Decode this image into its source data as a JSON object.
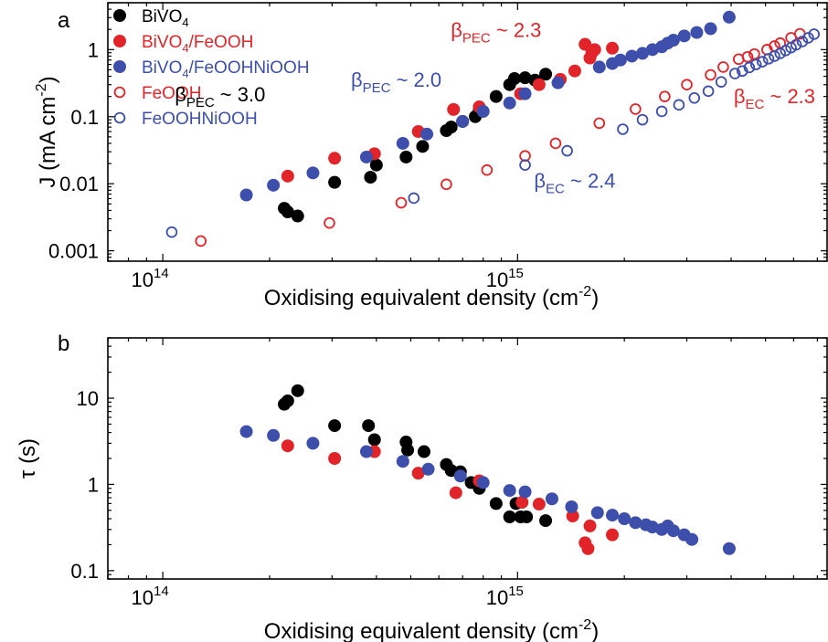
{
  "colors": {
    "bivo4": "#000000",
    "red": "#e0242a",
    "blue": "#3d4faa"
  },
  "chart_data": [
    {
      "panel_label": "a",
      "type": "scatter",
      "xscale": "log",
      "yscale": "log",
      "xlim": [
        70000000000000.0,
        7500000000000000.0
      ],
      "ylim": [
        0.0007,
        5
      ],
      "xlabel": "Oxidising equivalent density (cm",
      "xlabel_sup": "-2",
      "xlabel_end": ")",
      "ylabel": "J (mA cm",
      "ylabel_sup": "-2",
      "ylabel_end": ")",
      "xticks": [
        {
          "base": "10",
          "exp": "14",
          "value": 100000000000000.0
        },
        {
          "base": "10",
          "exp": "15",
          "value": 1000000000000000.0
        }
      ],
      "yticks": [
        {
          "label": "0.001",
          "value": 0.001
        },
        {
          "label": "0.01",
          "value": 0.01
        },
        {
          "label": "0.1",
          "value": 0.1
        },
        {
          "label": "1",
          "value": 1
        }
      ],
      "legend": {
        "placement": "top-left",
        "entries": [
          {
            "text": "BiVO",
            "sub": "4",
            "tail": "",
            "marker": "filled",
            "color": "#000000"
          },
          {
            "text": "BiVO",
            "sub": "4",
            "tail": "/FeOOH",
            "marker": "filled",
            "color": "#e0242a"
          },
          {
            "text": "BiVO",
            "sub": "4",
            "tail": "/FeOOHNiOOH",
            "marker": "filled",
            "color": "#3d4faa"
          },
          {
            "text": "FeOOH",
            "sub": "",
            "tail": "",
            "marker": "open",
            "color": "#e0242a"
          },
          {
            "text": "FeOOHNiOOH",
            "sub": "",
            "tail": "",
            "marker": "open",
            "color": "#3d4faa"
          }
        ]
      },
      "annotations": [
        {
          "sym": "β",
          "sub": "PEC",
          "tail": " ~ 3.0",
          "color": "#000000",
          "x": 145000000000000.0,
          "y": 0.17
        },
        {
          "sym": "β",
          "sub": "PEC",
          "tail": " ~ 2.0",
          "color": "#3d4faa",
          "x": 455000000000000.0,
          "y": 0.28
        },
        {
          "sym": "β",
          "sub": "PEC",
          "tail": " ~ 2.3",
          "color": "#e0242a",
          "x": 870000000000000.0,
          "y": 1.55
        },
        {
          "sym": "β",
          "sub": "EC",
          "tail": " ~ 2.4",
          "color": "#3d4faa",
          "x": 1450000000000000.0,
          "y": 0.0088
        },
        {
          "sym": "β",
          "sub": "EC",
          "tail": " ~ 2.3",
          "color": "#e0242a",
          "x": 5300000000000000.0,
          "y": 0.16
        }
      ],
      "series": [
        {
          "name": "BiVO4",
          "marker": "filled",
          "color": "#000000",
          "points": [
            [
              220000000000000.0,
              0.0043
            ],
            [
              225000000000000.0,
              0.0038
            ],
            [
              240000000000000.0,
              0.0033
            ],
            [
              305000000000000.0,
              0.0105
            ],
            [
              385000000000000.0,
              0.0125
            ],
            [
              400000000000000.0,
              0.019
            ],
            [
              485000000000000.0,
              0.025
            ],
            [
              540000000000000.0,
              0.036
            ],
            [
              630000000000000.0,
              0.062
            ],
            [
              650000000000000.0,
              0.07
            ],
            [
              700000000000000.0,
              0.085
            ],
            [
              760000000000000.0,
              0.1
            ],
            [
              780000000000000.0,
              0.125
            ],
            [
              870000000000000.0,
              0.2
            ],
            [
              950000000000000.0,
              0.3
            ],
            [
              980000000000000.0,
              0.37
            ],
            [
              1050000000000000.0,
              0.38
            ],
            [
              1120000000000000.0,
              0.35
            ],
            [
              1200000000000000.0,
              0.43
            ]
          ]
        },
        {
          "name": "BiVO4/FeOOH",
          "marker": "filled",
          "color": "#e0242a",
          "points": [
            [
              225000000000000.0,
              0.013
            ],
            [
              305000000000000.0,
              0.024
            ],
            [
              395000000000000.0,
              0.028
            ],
            [
              525000000000000.0,
              0.06
            ],
            [
              660000000000000.0,
              0.128
            ],
            [
              780000000000000.0,
              0.14
            ],
            [
              1020000000000000.0,
              0.22
            ],
            [
              1150000000000000.0,
              0.3
            ],
            [
              1320000000000000.0,
              0.36
            ],
            [
              1450000000000000.0,
              0.48
            ],
            [
              1550000000000000.0,
              1.2
            ],
            [
              1600000000000000.0,
              0.75
            ],
            [
              1620000000000000.0,
              0.9
            ],
            [
              1650000000000000.0,
              1.0
            ],
            [
              1850000000000000.0,
              1.05
            ]
          ]
        },
        {
          "name": "BiVO4/FeOOHNiOOH",
          "marker": "filled",
          "color": "#3d4faa",
          "points": [
            [
              172000000000000.0,
              0.0068
            ],
            [
              205000000000000.0,
              0.0095
            ],
            [
              265000000000000.0,
              0.0145
            ],
            [
              375000000000000.0,
              0.025
            ],
            [
              475000000000000.0,
              0.04
            ],
            [
              555000000000000.0,
              0.055
            ],
            [
              700000000000000.0,
              0.085
            ],
            [
              800000000000000.0,
              0.12
            ],
            [
              950000000000000.0,
              0.16
            ],
            [
              1050000000000000.0,
              0.22
            ],
            [
              1300000000000000.0,
              0.32
            ],
            [
              1700000000000000.0,
              0.55
            ],
            [
              1850000000000000.0,
              0.62
            ],
            [
              1950000000000000.0,
              0.7
            ],
            [
              2100000000000000.0,
              0.8
            ],
            [
              2250000000000000.0,
              0.88
            ],
            [
              2400000000000000.0,
              1.0
            ],
            [
              2550000000000000.0,
              1.1
            ],
            [
              2650000000000000.0,
              1.25
            ],
            [
              2750000000000000.0,
              1.38
            ],
            [
              2950000000000000.0,
              1.6
            ],
            [
              3200000000000000.0,
              1.8
            ],
            [
              3500000000000000.0,
              2.05
            ],
            [
              3950000000000000.0,
              3.05
            ]
          ]
        },
        {
          "name": "FeOOH",
          "marker": "open",
          "color": "#e0242a",
          "points": [
            [
              128000000000000.0,
              0.0014
            ],
            [
              295000000000000.0,
              0.0026
            ],
            [
              470000000000000.0,
              0.0052
            ],
            [
              630000000000000.0,
              0.0098
            ],
            [
              820000000000000.0,
              0.016
            ],
            [
              1050000000000000.0,
              0.026
            ],
            [
              1280000000000000.0,
              0.04
            ],
            [
              1700000000000000.0,
              0.08
            ],
            [
              2150000000000000.0,
              0.13
            ],
            [
              2600000000000000.0,
              0.2
            ],
            [
              3000000000000000.0,
              0.3
            ],
            [
              3500000000000000.0,
              0.42
            ],
            [
              3800000000000000.0,
              0.55
            ],
            [
              4200000000000000.0,
              0.72
            ],
            [
              4450000000000000.0,
              0.78
            ],
            [
              4650000000000000.0,
              0.86
            ],
            [
              5050000000000000.0,
              1.0
            ],
            [
              5300000000000000.0,
              1.13
            ],
            [
              5500000000000000.0,
              1.25
            ],
            [
              5900000000000000.0,
              1.5
            ],
            [
              6250000000000000.0,
              1.72
            ]
          ]
        },
        {
          "name": "FeOOHNiOOH",
          "marker": "open",
          "color": "#3d4faa",
          "points": [
            [
              106000000000000.0,
              0.0019
            ],
            [
              510000000000000.0,
              0.0061
            ],
            [
              1050000000000000.0,
              0.019
            ],
            [
              1380000000000000.0,
              0.031
            ],
            [
              1980000000000000.0,
              0.065
            ],
            [
              2250000000000000.0,
              0.09
            ],
            [
              2550000000000000.0,
              0.12
            ],
            [
              2850000000000000.0,
              0.15
            ],
            [
              3150000000000000.0,
              0.19
            ],
            [
              3450000000000000.0,
              0.24
            ],
            [
              3750000000000000.0,
              0.33
            ],
            [
              4100000000000000.0,
              0.44
            ],
            [
              4300000000000000.0,
              0.48
            ],
            [
              4500000000000000.0,
              0.54
            ],
            [
              4700000000000000.0,
              0.6
            ],
            [
              4900000000000000.0,
              0.66
            ],
            [
              5100000000000000.0,
              0.73
            ],
            [
              5300000000000000.0,
              0.8
            ],
            [
              5500000000000000.0,
              0.88
            ],
            [
              5700000000000000.0,
              0.97
            ],
            [
              5900000000000000.0,
              1.07
            ],
            [
              6100000000000000.0,
              1.18
            ],
            [
              6350000000000000.0,
              1.32
            ],
            [
              6600000000000000.0,
              1.5
            ],
            [
              6850000000000000.0,
              1.7
            ]
          ]
        }
      ]
    },
    {
      "panel_label": "b",
      "type": "scatter",
      "xscale": "log",
      "yscale": "log",
      "xlim": [
        70000000000000.0,
        7500000000000000.0
      ],
      "ylim": [
        0.08,
        50
      ],
      "xlabel": "Oxidising equivalent density (cm",
      "xlabel_sup": "-2",
      "xlabel_end": ")",
      "ylabel": "τ (s)",
      "xticks": [
        {
          "base": "10",
          "exp": "14",
          "value": 100000000000000.0
        },
        {
          "base": "10",
          "exp": "15",
          "value": 1000000000000000.0
        }
      ],
      "yticks": [
        {
          "label": "0.1",
          "value": 0.1
        },
        {
          "label": "1",
          "value": 1
        },
        {
          "label": "10",
          "value": 10
        }
      ],
      "series": [
        {
          "name": "BiVO4",
          "marker": "filled",
          "color": "#000000",
          "points": [
            [
              220000000000000.0,
              8.5
            ],
            [
              225000000000000.0,
              9.3
            ],
            [
              240000000000000.0,
              12.2
            ],
            [
              305000000000000.0,
              4.8
            ],
            [
              380000000000000.0,
              4.8
            ],
            [
              395000000000000.0,
              3.3
            ],
            [
              485000000000000.0,
              3.1
            ],
            [
              490000000000000.0,
              2.5
            ],
            [
              545000000000000.0,
              2.4
            ],
            [
              630000000000000.0,
              1.7
            ],
            [
              650000000000000.0,
              1.45
            ],
            [
              690000000000000.0,
              1.4
            ],
            [
              740000000000000.0,
              1.05
            ],
            [
              780000000000000.0,
              0.9
            ],
            [
              870000000000000.0,
              0.6
            ],
            [
              950000000000000.0,
              0.42
            ],
            [
              990000000000000.0,
              0.6
            ],
            [
              1020000000000000.0,
              0.42
            ],
            [
              1060000000000000.0,
              0.42
            ],
            [
              1200000000000000.0,
              0.38
            ]
          ]
        },
        {
          "name": "BiVO4/FeOOH",
          "marker": "filled",
          "color": "#e0242a",
          "points": [
            [
              225000000000000.0,
              2.8
            ],
            [
              305000000000000.0,
              2.0
            ],
            [
              395000000000000.0,
              2.4
            ],
            [
              525000000000000.0,
              1.35
            ],
            [
              670000000000000.0,
              0.8
            ],
            [
              780000000000000.0,
              1.1
            ],
            [
              1030000000000000.0,
              0.62
            ],
            [
              1150000000000000.0,
              0.59
            ],
            [
              1430000000000000.0,
              0.43
            ],
            [
              1550000000000000.0,
              0.21
            ],
            [
              1580000000000000.0,
              0.18
            ],
            [
              1600000000000000.0,
              0.33
            ],
            [
              1850000000000000.0,
              0.26
            ]
          ]
        },
        {
          "name": "BiVO4/FeOOHNiOOH",
          "marker": "filled",
          "color": "#3d4faa",
          "points": [
            [
              172000000000000.0,
              4.1
            ],
            [
              205000000000000.0,
              3.7
            ],
            [
              265000000000000.0,
              3.0
            ],
            [
              375000000000000.0,
              2.4
            ],
            [
              475000000000000.0,
              1.85
            ],
            [
              560000000000000.0,
              1.5
            ],
            [
              690000000000000.0,
              1.25
            ],
            [
              800000000000000.0,
              1.05
            ],
            [
              950000000000000.0,
              0.85
            ],
            [
              1050000000000000.0,
              0.82
            ],
            [
              1250000000000000.0,
              0.68
            ],
            [
              1420000000000000.0,
              0.55
            ],
            [
              1680000000000000.0,
              0.47
            ],
            [
              1850000000000000.0,
              0.44
            ],
            [
              2000000000000000.0,
              0.4
            ],
            [
              2150000000000000.0,
              0.36
            ],
            [
              2300000000000000.0,
              0.34
            ],
            [
              2400000000000000.0,
              0.32
            ],
            [
              2550000000000000.0,
              0.3
            ],
            [
              2650000000000000.0,
              0.33
            ],
            [
              2750000000000000.0,
              0.29
            ],
            [
              2950000000000000.0,
              0.26
            ],
            [
              3100000000000000.0,
              0.23
            ],
            [
              3950000000000000.0,
              0.18
            ]
          ]
        }
      ]
    }
  ]
}
